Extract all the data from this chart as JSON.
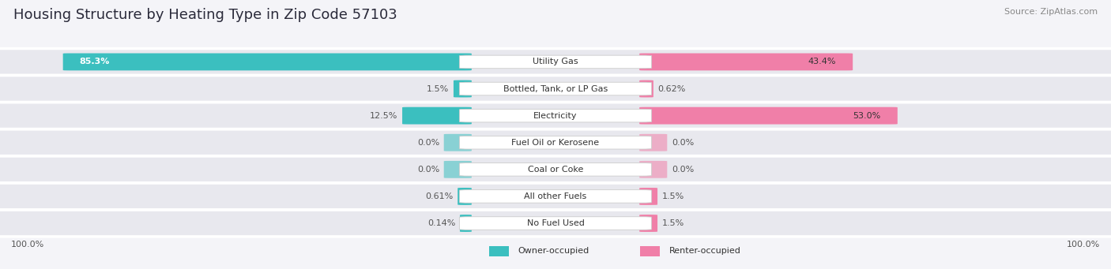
{
  "title": "Housing Structure by Heating Type in Zip Code 57103",
  "source": "Source: ZipAtlas.com",
  "categories": [
    "Utility Gas",
    "Bottled, Tank, or LP Gas",
    "Electricity",
    "Fuel Oil or Kerosene",
    "Coal or Coke",
    "All other Fuels",
    "No Fuel Used"
  ],
  "owner_values": [
    85.3,
    1.5,
    12.5,
    0.0,
    0.0,
    0.61,
    0.14
  ],
  "renter_values": [
    43.4,
    0.62,
    53.0,
    0.0,
    0.0,
    1.5,
    1.5
  ],
  "owner_color": "#3bbfbf",
  "renter_color": "#f07fa8",
  "owner_label": "Owner-occupied",
  "renter_label": "Renter-occupied",
  "owner_fmt": [
    "85.3%",
    "1.5%",
    "12.5%",
    "0.0%",
    "0.0%",
    "0.61%",
    "0.14%"
  ],
  "renter_fmt": [
    "43.4%",
    "0.62%",
    "53.0%",
    "0.0%",
    "0.0%",
    "1.5%",
    "1.5%"
  ],
  "bg_color": "#f4f4f8",
  "row_bg": "#e8e8ee",
  "bar_max": 100.0,
  "title_fontsize": 13,
  "cat_fontsize": 8,
  "val_fontsize": 8,
  "legend_fontsize": 8,
  "source_fontsize": 8
}
